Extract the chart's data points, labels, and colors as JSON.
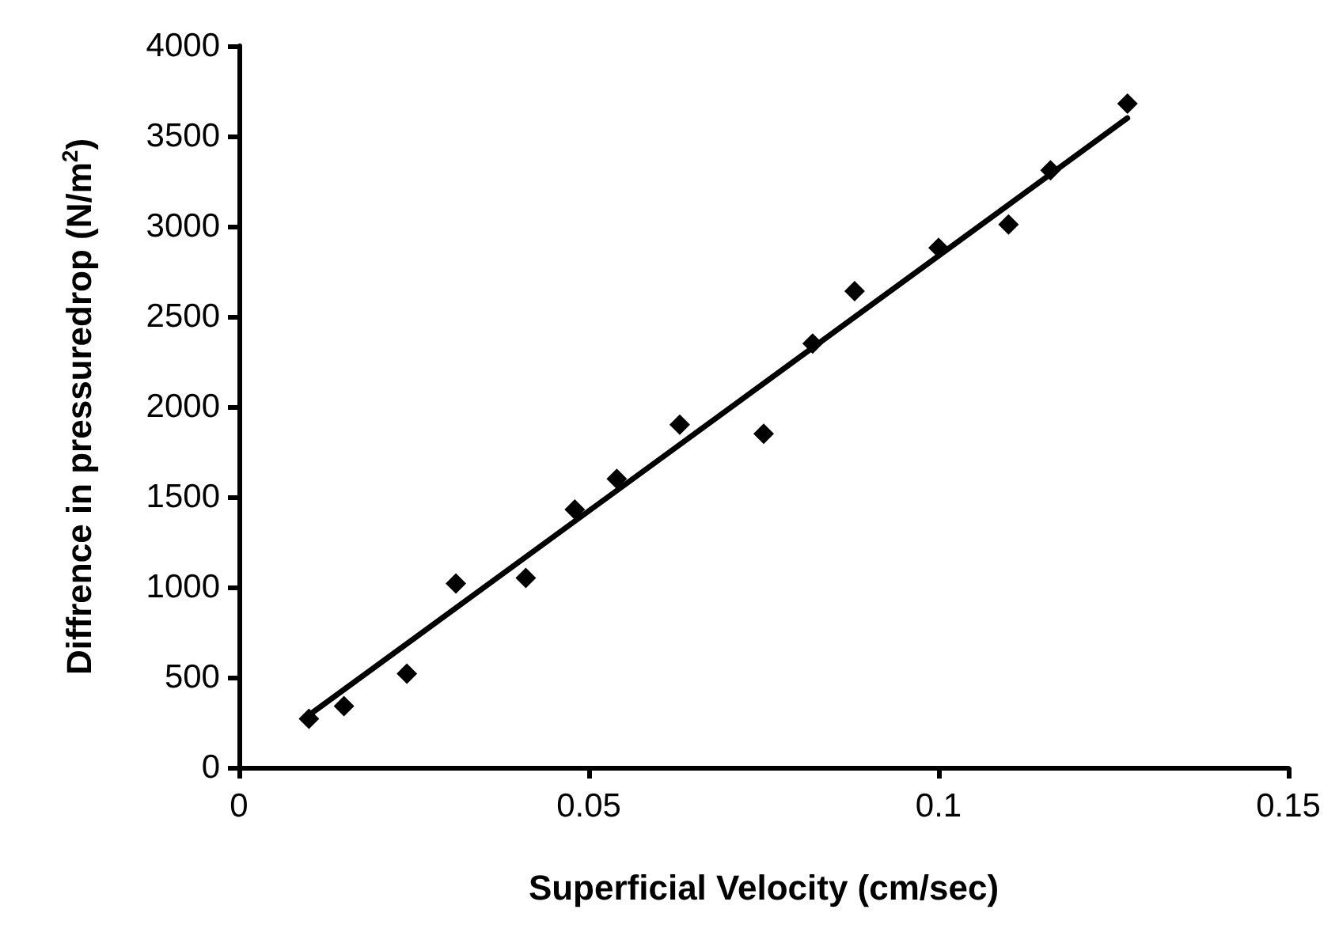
{
  "chart_data": {
    "type": "scatter",
    "xlabel": "Superficial Velocity (cm/sec)",
    "ylabel": "Diffrence in pressuredrop (N/m$^{2}$)",
    "x": [
      0.01,
      0.015,
      0.024,
      0.031,
      0.041,
      0.048,
      0.054,
      0.063,
      0.075,
      0.082,
      0.088,
      0.1,
      0.11,
      0.116,
      0.127
    ],
    "series": [
      {
        "color": "#000000",
        "marker": "diamond",
        "values": [
          270,
          340,
          520,
          1020,
          1050,
          1430,
          1600,
          1900,
          1850,
          2350,
          2640,
          2880,
          3010,
          3310,
          3680
        ]
      },
      {
        "type": "line",
        "color": "#000000",
        "x": [
          0.01,
          0.127
        ],
        "values": [
          290,
          3600
        ]
      }
    ],
    "xlim": [
      0,
      0.15
    ],
    "xticks": [
      0,
      0.05,
      0.1,
      0.15
    ],
    "ylim": [
      0,
      4000
    ],
    "yticks": [
      0,
      500,
      1000,
      1500,
      2000,
      2500,
      3000,
      3500,
      4000
    ],
    "grid": false
  }
}
